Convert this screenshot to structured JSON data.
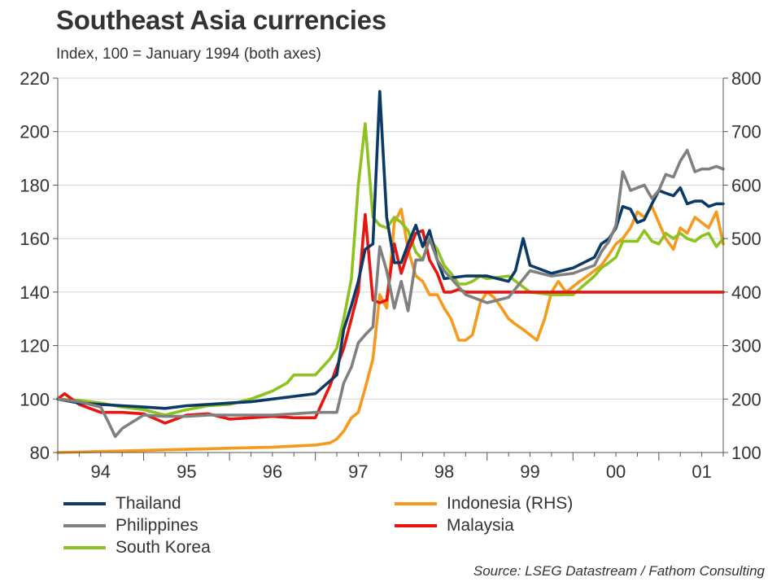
{
  "title": "Southeast Asia currencies",
  "subtitle": "Index, 100 = January 1994 (both axes)",
  "source": "Source: LSEG Datastream / Fathom Consulting",
  "chart_data": {
    "type": "line",
    "title": "Southeast Asia currencies",
    "subtitle": "Index, 100 = January 1994 (both axes)",
    "x_unit": "year",
    "xlim": [
      1994.0,
      2001.75
    ],
    "x_ticks": [
      {
        "label": "94",
        "x": 1994.5
      },
      {
        "label": "95",
        "x": 1995.5
      },
      {
        "label": "96",
        "x": 1996.5
      },
      {
        "label": "97",
        "x": 1997.5
      },
      {
        "label": "98",
        "x": 1998.5
      },
      {
        "label": "99",
        "x": 1999.5
      },
      {
        "label": "00",
        "x": 2000.5
      },
      {
        "label": "01",
        "x": 2001.5
      }
    ],
    "y_left": {
      "lim": [
        80,
        220
      ],
      "ticks": [
        "80",
        "100",
        "120",
        "140",
        "160",
        "180",
        "200",
        "220"
      ]
    },
    "y_right": {
      "lim": [
        100,
        800
      ],
      "ticks": [
        "100",
        "200",
        "300",
        "400",
        "500",
        "600",
        "700",
        "800"
      ]
    },
    "grid": "horizontal",
    "legend": "bottom",
    "series": [
      {
        "name": "Thailand",
        "axis": "left",
        "color": "#0b3a66",
        "x": [
          1994.0,
          1994.25,
          1994.5,
          1994.75,
          1995.0,
          1995.25,
          1995.5,
          1995.75,
          1996.0,
          1996.25,
          1996.5,
          1996.75,
          1997.0,
          1997.25,
          1997.33,
          1997.42,
          1997.5,
          1997.58,
          1997.67,
          1997.75,
          1997.83,
          1997.92,
          1998.0,
          1998.08,
          1998.17,
          1998.25,
          1998.33,
          1998.42,
          1998.5,
          1998.75,
          1999.0,
          1999.25,
          1999.33,
          1999.42,
          1999.5,
          1999.75,
          2000.0,
          2000.25,
          2000.33,
          2000.42,
          2000.5,
          2000.58,
          2000.67,
          2000.75,
          2000.83,
          2000.92,
          2001.0,
          2001.08,
          2001.17,
          2001.25,
          2001.33,
          2001.42,
          2001.5,
          2001.58,
          2001.67,
          2001.75
        ],
        "values": [
          100,
          98.5,
          98,
          97.5,
          97,
          96.5,
          97.5,
          98,
          98.5,
          99,
          100,
          101,
          102,
          109,
          126,
          135,
          144,
          156,
          158,
          215,
          168,
          151,
          151,
          158,
          165,
          157,
          163,
          152,
          145,
          146,
          146,
          144,
          148,
          160,
          150,
          147,
          149,
          153,
          158,
          160,
          164,
          172,
          171,
          166,
          167,
          173,
          178,
          177,
          176,
          179,
          173,
          174,
          174,
          172,
          173,
          173
        ]
      },
      {
        "name": "Philippines",
        "axis": "left",
        "color": "#808080",
        "x": [
          1994.0,
          1994.25,
          1994.5,
          1994.58,
          1994.67,
          1994.75,
          1995.0,
          1995.25,
          1995.5,
          1995.75,
          1996.0,
          1996.25,
          1996.5,
          1996.75,
          1997.0,
          1997.25,
          1997.33,
          1997.42,
          1997.5,
          1997.58,
          1997.67,
          1997.75,
          1997.83,
          1997.92,
          1998.0,
          1998.08,
          1998.17,
          1998.25,
          1998.33,
          1998.42,
          1998.5,
          1998.75,
          1999.0,
          1999.25,
          1999.5,
          1999.75,
          2000.0,
          2000.25,
          2000.33,
          2000.42,
          2000.5,
          2000.58,
          2000.67,
          2000.75,
          2000.83,
          2000.92,
          2001.0,
          2001.08,
          2001.17,
          2001.25,
          2001.33,
          2001.42,
          2001.5,
          2001.58,
          2001.67,
          2001.75
        ],
        "values": [
          100,
          99,
          97,
          92,
          86,
          89,
          94,
          93.5,
          93.5,
          94,
          94,
          94,
          94,
          94.5,
          95,
          95,
          106,
          112,
          121,
          124,
          127,
          157,
          148,
          134,
          144,
          133,
          152,
          152,
          160,
          152,
          148,
          139,
          136,
          138,
          148,
          146,
          147,
          150,
          155,
          159,
          165,
          185,
          178,
          179,
          180,
          175,
          178,
          184,
          183,
          189,
          193,
          185,
          186,
          186,
          187,
          186
        ]
      },
      {
        "name": "South Korea",
        "axis": "left",
        "color": "#8dc21f",
        "x": [
          1994.0,
          1994.25,
          1994.5,
          1994.75,
          1995.0,
          1995.25,
          1995.5,
          1995.75,
          1996.0,
          1996.25,
          1996.5,
          1996.67,
          1996.75,
          1997.0,
          1997.17,
          1997.25,
          1997.33,
          1997.42,
          1997.5,
          1997.58,
          1997.67,
          1997.75,
          1997.83,
          1997.92,
          1998.0,
          1998.08,
          1998.17,
          1998.25,
          1998.33,
          1998.42,
          1998.5,
          1998.58,
          1998.67,
          1998.75,
          1998.83,
          1998.92,
          1999.0,
          1999.25,
          1999.5,
          1999.75,
          2000.0,
          2000.25,
          2000.33,
          2000.42,
          2000.5,
          2000.58,
          2000.67,
          2000.75,
          2000.83,
          2000.92,
          2001.0,
          2001.08,
          2001.17,
          2001.25,
          2001.33,
          2001.42,
          2001.5,
          2001.58,
          2001.67,
          2001.75
        ],
        "values": [
          100,
          99.5,
          98.5,
          97,
          96,
          94,
          96,
          97.5,
          98,
          100,
          103,
          106,
          109,
          109,
          115,
          119,
          130,
          145,
          180,
          203,
          168,
          165,
          164,
          168,
          166,
          163,
          155,
          152,
          160,
          156,
          150,
          147,
          143,
          143,
          144,
          146,
          145,
          146,
          140,
          139,
          139,
          146,
          149,
          151,
          153,
          159,
          159,
          159,
          163,
          159,
          158,
          162,
          160,
          162,
          160,
          159,
          161,
          162,
          157,
          160
        ]
      },
      {
        "name": "Indonesia (RHS)",
        "axis": "right",
        "color": "#f59a1c",
        "x": [
          1994.0,
          1994.5,
          1995.0,
          1995.5,
          1996.0,
          1996.5,
          1997.0,
          1997.17,
          1997.25,
          1997.33,
          1997.42,
          1997.5,
          1997.58,
          1997.67,
          1997.75,
          1997.83,
          1997.92,
          1998.0,
          1998.08,
          1998.17,
          1998.25,
          1998.33,
          1998.42,
          1998.5,
          1998.58,
          1998.67,
          1998.75,
          1998.83,
          1998.92,
          1999.0,
          1999.08,
          1999.17,
          1999.25,
          1999.33,
          1999.42,
          1999.5,
          1999.58,
          1999.67,
          1999.75,
          1999.83,
          1999.92,
          2000.0,
          2000.08,
          2000.17,
          2000.25,
          2000.33,
          2000.42,
          2000.5,
          2000.58,
          2000.67,
          2000.75,
          2000.83,
          2000.92,
          2001.0,
          2001.08,
          2001.17,
          2001.25,
          2001.33,
          2001.42,
          2001.5,
          2001.58,
          2001.67,
          2001.75
        ],
        "values": [
          100,
          102,
          104,
          106,
          108,
          110,
          114,
          118,
          125,
          140,
          165,
          175,
          220,
          275,
          395,
          370,
          530,
          555,
          480,
          430,
          420,
          395,
          395,
          370,
          350,
          310,
          310,
          320,
          380,
          400,
          390,
          370,
          350,
          340,
          330,
          320,
          310,
          350,
          400,
          420,
          400,
          410,
          420,
          430,
          440,
          450,
          470,
          490,
          500,
          520,
          550,
          540,
          560,
          530,
          500,
          480,
          520,
          510,
          540,
          530,
          520,
          550,
          490
        ]
      },
      {
        "name": "Malaysia",
        "axis": "left",
        "color": "#e8150f",
        "x": [
          1994.0,
          1994.08,
          1994.25,
          1994.5,
          1994.75,
          1995.0,
          1995.25,
          1995.5,
          1995.75,
          1996.0,
          1996.25,
          1996.5,
          1996.75,
          1997.0,
          1997.17,
          1997.25,
          1997.33,
          1997.42,
          1997.5,
          1997.58,
          1997.67,
          1997.75,
          1997.83,
          1997.92,
          1998.0,
          1998.08,
          1998.17,
          1998.25,
          1998.33,
          1998.42,
          1998.5,
          1998.58,
          1998.67,
          1998.75,
          1998.92,
          1999.0,
          1999.5,
          2000.0,
          2000.5,
          2001.0,
          2001.5,
          2001.75
        ],
        "values": [
          100,
          102,
          98,
          95,
          95,
          94.5,
          91,
          94,
          94.5,
          92.5,
          93,
          93.5,
          93,
          93,
          105,
          112,
          119,
          130,
          140,
          169,
          137,
          136,
          137,
          158,
          147,
          155,
          162,
          163,
          152,
          147,
          140,
          140,
          141,
          140,
          140,
          140,
          140,
          140,
          140,
          140,
          140,
          140
        ]
      }
    ]
  },
  "legend": {
    "items": [
      {
        "label": "Thailand",
        "color": "#0b3a66"
      },
      {
        "label": "Indonesia (RHS)",
        "color": "#f59a1c"
      },
      {
        "label": "Philippines",
        "color": "#808080"
      },
      {
        "label": "Malaysia",
        "color": "#e8150f"
      },
      {
        "label": "South Korea",
        "color": "#8dc21f"
      }
    ]
  }
}
